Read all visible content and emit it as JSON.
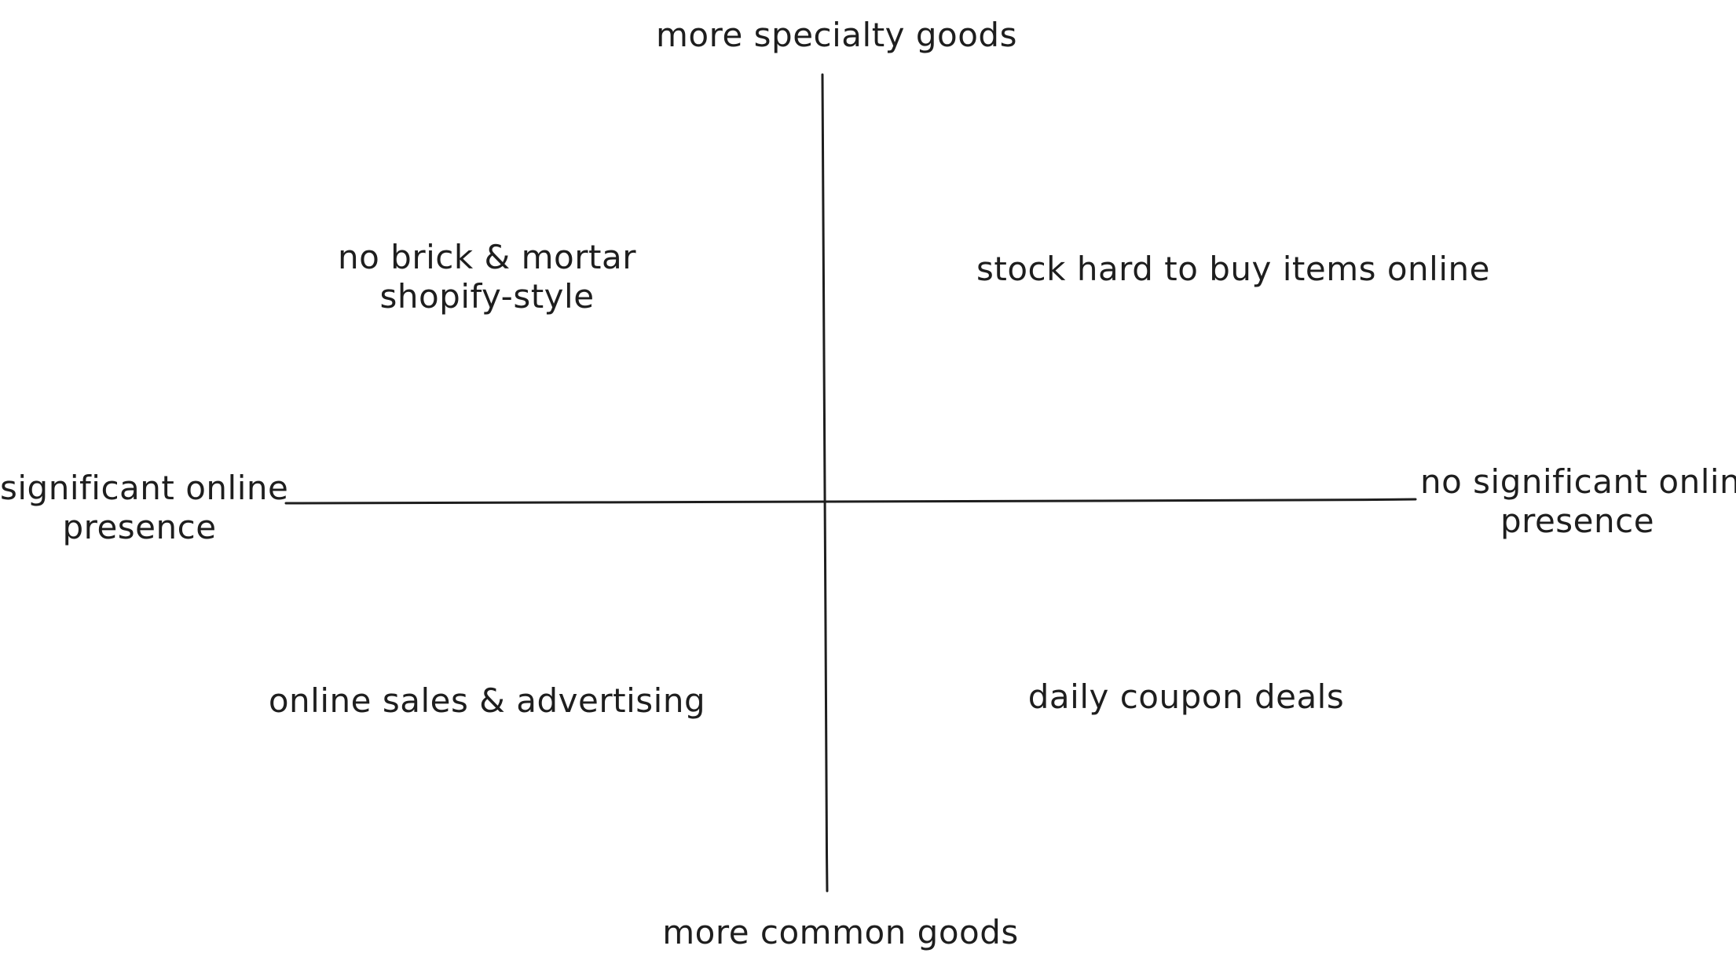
{
  "axes": {
    "top_label": "more specialty goods",
    "bottom_label": "more common goods",
    "left_label": [
      "significant online",
      "presence"
    ],
    "right_label": [
      "no significant online",
      "presence"
    ]
  },
  "quadrants": {
    "top_left": [
      "no brick & mortar",
      "shopify-style"
    ],
    "top_right": "stock hard to buy items online",
    "bottom_left": "online sales & advertising",
    "bottom_right": "daily coupon deals"
  },
  "colors": {
    "stroke": "#1e1e1e",
    "background": "#ffffff"
  }
}
